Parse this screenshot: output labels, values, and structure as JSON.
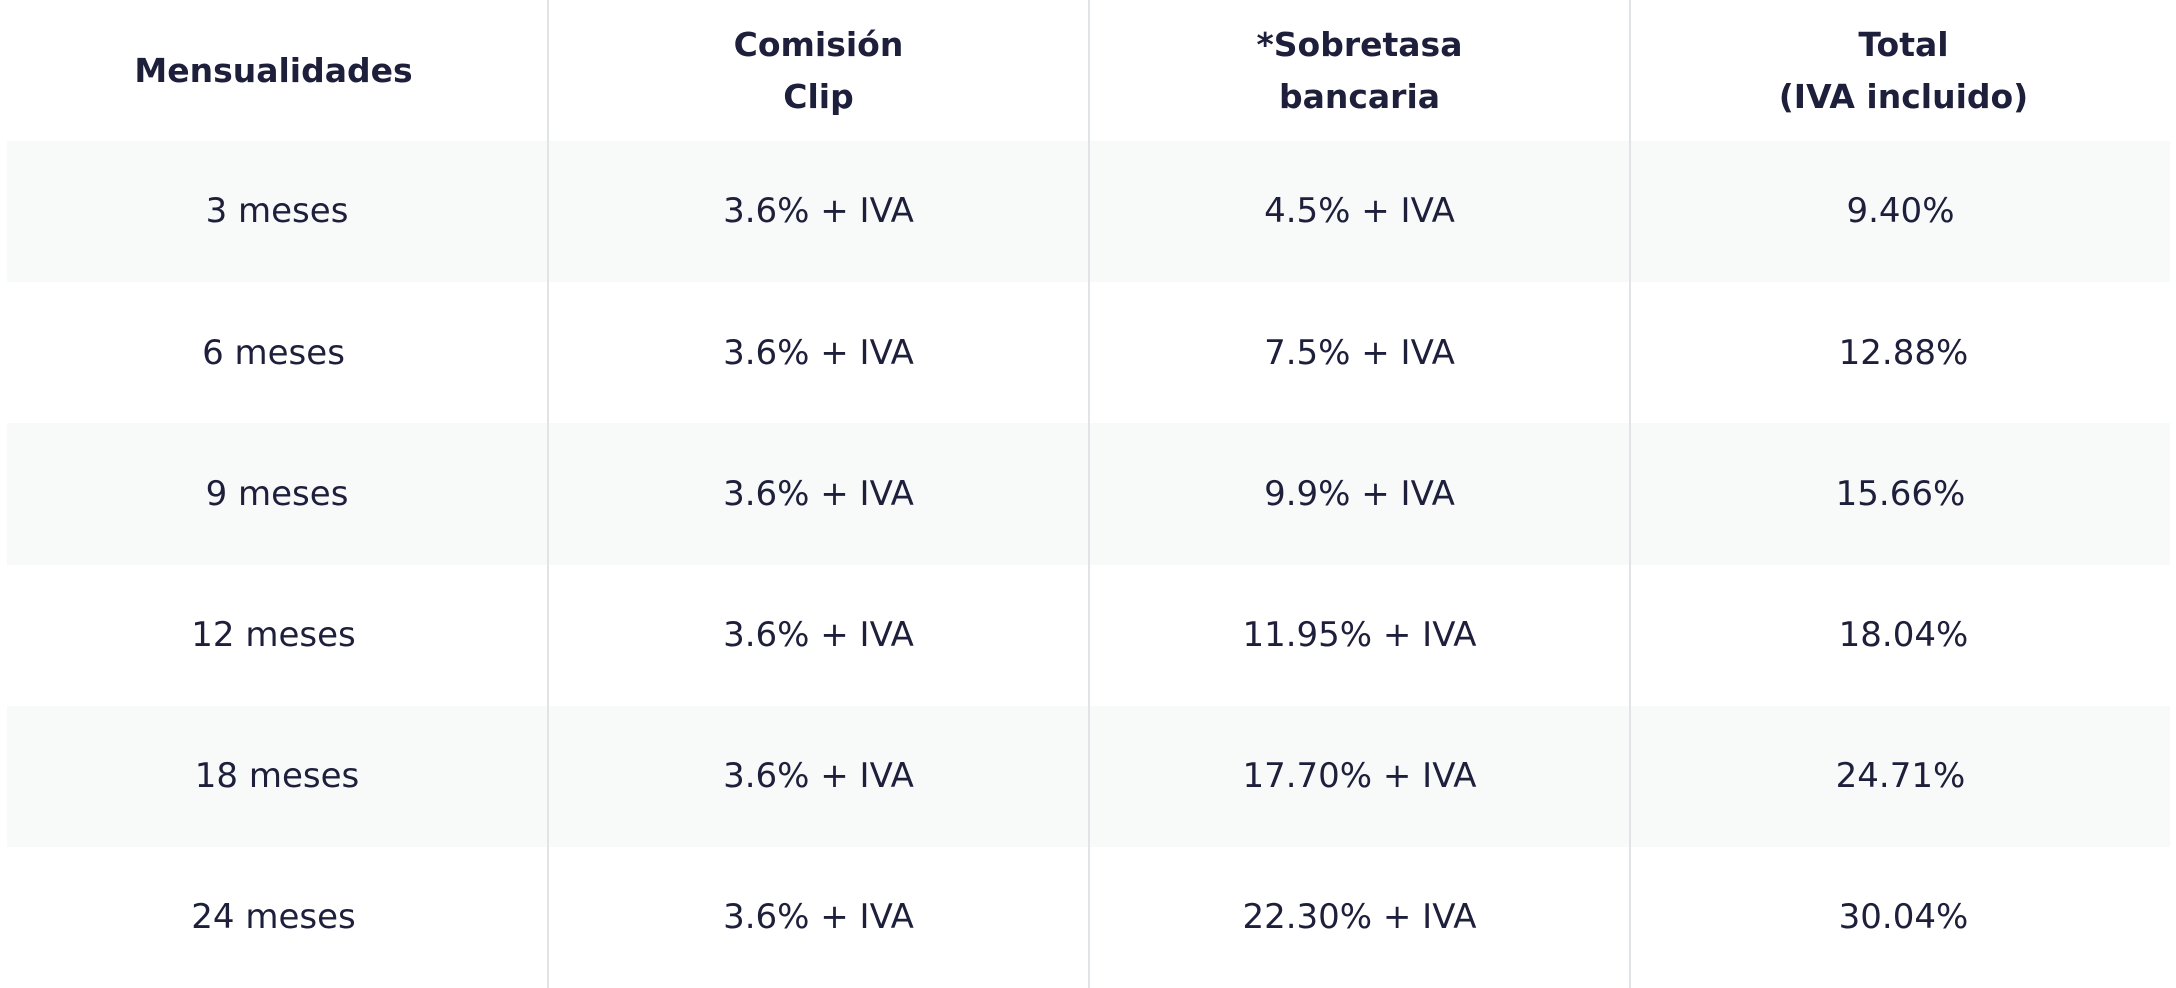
{
  "table": {
    "header": [
      "Mensualidades",
      "Comisión\nClip",
      "*Sobretasa\nbancaria",
      "Total\n(IVA incluido)"
    ],
    "rows": [
      [
        "3 meses",
        "3.6% + IVA",
        "4.5% + IVA",
        "9.40%"
      ],
      [
        "6 meses",
        "3.6% + IVA",
        "7.5% + IVA",
        "12.88%"
      ],
      [
        "9 meses",
        "3.6% + IVA",
        "9.9% + IVA",
        "15.66%"
      ],
      [
        "12 meses",
        "3.6% + IVA",
        "11.95% + IVA",
        "18.04%"
      ],
      [
        "18 meses",
        "3.6% + IVA",
        "17.70% + IVA",
        "24.71%"
      ],
      [
        "24 meses",
        "3.6% + IVA",
        "22.30% + IVA",
        "30.04%"
      ]
    ]
  }
}
